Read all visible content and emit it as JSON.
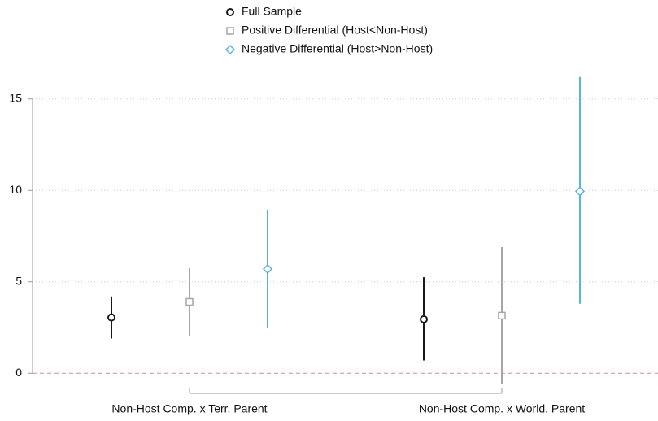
{
  "chart_data": {
    "type": "errorbar",
    "categories": [
      "Non-Host Comp. x Terr. Parent",
      "Non-Host Comp. x World. Parent"
    ],
    "series": [
      {
        "name": "Full Sample",
        "color": "#1a1a1a",
        "marker": "circle",
        "values": [
          3.05,
          2.95
        ],
        "lower": [
          1.9,
          0.7
        ],
        "upper": [
          4.2,
          5.25
        ]
      },
      {
        "name": "Positive Differential (Host<Non-Host)",
        "color": "#a6a6a6",
        "marker": "square",
        "values": [
          3.9,
          3.15
        ],
        "lower": [
          2.05,
          -0.6
        ],
        "upper": [
          5.75,
          6.9
        ]
      },
      {
        "name": "Negative Differential (Host>Non-Host)",
        "color": "#56b4e0",
        "marker": "diamond",
        "values": [
          5.7,
          9.95
        ],
        "lower": [
          2.5,
          3.8
        ],
        "upper": [
          8.9,
          16.2
        ]
      }
    ],
    "ylim": [
      -1.1,
      16.5
    ],
    "yticks": [
      0,
      5,
      10,
      15
    ],
    "grid": true,
    "reference_line": 0,
    "reference_color": "#d98a9c",
    "legend": "top"
  }
}
